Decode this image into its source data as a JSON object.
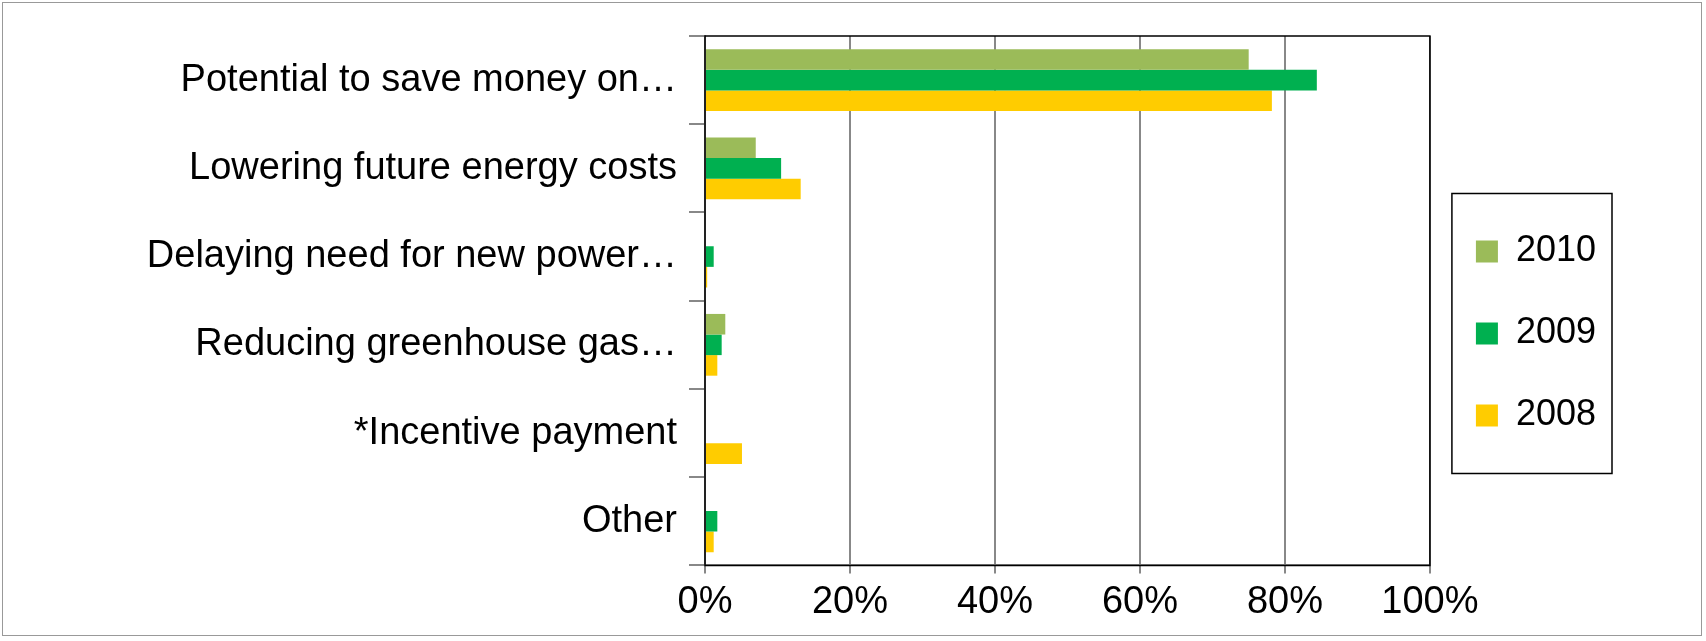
{
  "chart_data": {
    "type": "bar",
    "orientation": "horizontal",
    "categories": [
      "Potential to save money on…",
      "Lowering future energy costs",
      "Delaying need for new power…",
      "Reducing greenhouse gas…",
      "*Incentive payment",
      "Other"
    ],
    "series": [
      {
        "name": "2010",
        "color": "#9bbb59",
        "values": [
          75,
          7,
          null,
          2.8,
          null,
          null
        ]
      },
      {
        "name": "2009",
        "color": "#00b050",
        "values": [
          84.4,
          10.5,
          1.2,
          2.3,
          null,
          1.7
        ]
      },
      {
        "name": "2008",
        "color": "#ffcc00",
        "values": [
          78.2,
          13.2,
          0.3,
          1.7,
          5.1,
          1.2
        ]
      }
    ],
    "xlim": [
      0,
      100
    ],
    "xticks": [
      {
        "value": 0,
        "label": "0%"
      },
      {
        "value": 20,
        "label": "20%"
      },
      {
        "value": 40,
        "label": "40%"
      },
      {
        "value": 60,
        "label": "60%"
      },
      {
        "value": 80,
        "label": "80%"
      },
      {
        "value": 100,
        "label": "100%"
      }
    ],
    "grid": "x",
    "legend": "right"
  }
}
